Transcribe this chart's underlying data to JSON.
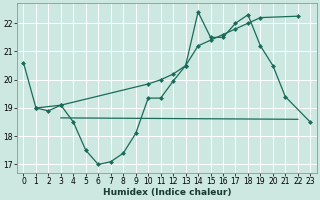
{
  "background_color": "#cce8e0",
  "grid_color": "#b0d8d0",
  "line_color": "#1a6b5a",
  "xlabel": "Humidex (Indice chaleur)",
  "xlim": [
    -0.5,
    23.5
  ],
  "ylim": [
    16.7,
    22.7
  ],
  "yticks": [
    17,
    18,
    19,
    20,
    21,
    22
  ],
  "xticks": [
    0,
    1,
    2,
    3,
    4,
    5,
    6,
    7,
    8,
    9,
    10,
    11,
    12,
    13,
    14,
    15,
    16,
    17,
    18,
    19,
    20,
    21,
    22,
    23
  ],
  "line1_x": [
    0,
    1,
    2,
    3,
    4,
    5,
    6,
    7,
    8,
    9,
    10,
    11,
    12,
    13,
    14,
    15,
    16,
    17,
    18,
    19,
    20,
    21,
    23
  ],
  "line1_y": [
    20.6,
    19.0,
    18.9,
    19.1,
    18.5,
    17.5,
    17.0,
    17.1,
    17.4,
    18.1,
    19.35,
    19.35,
    19.95,
    20.5,
    22.4,
    21.5,
    21.5,
    22.0,
    22.3,
    21.2,
    20.5,
    19.4,
    18.5
  ],
  "line2_x": [
    1,
    3,
    10,
    11,
    12,
    13,
    14,
    15,
    16,
    17,
    18,
    19,
    22
  ],
  "line2_y": [
    19.0,
    19.1,
    19.85,
    20.0,
    20.2,
    20.5,
    21.2,
    21.4,
    21.6,
    21.8,
    22.0,
    22.2,
    22.25
  ],
  "line3_x": [
    3,
    22
  ],
  "line3_y": [
    18.65,
    18.6
  ]
}
